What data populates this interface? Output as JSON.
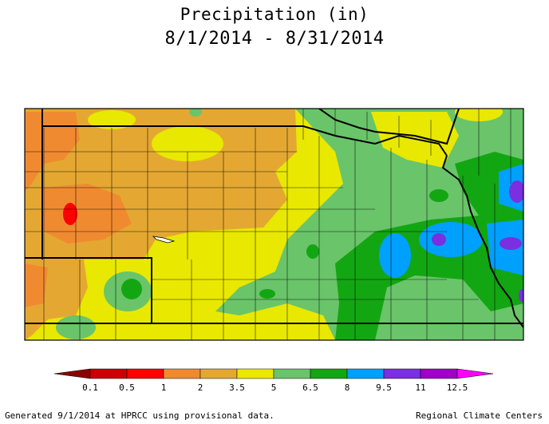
{
  "title": "Precipitation (in)",
  "date_range": "8/1/2014 - 8/31/2014",
  "legend": {
    "ticks": [
      "0.1",
      "0.5",
      "1",
      "2",
      "3.5",
      "5",
      "6.5",
      "8",
      "9.5",
      "11",
      "12.5"
    ],
    "colors": [
      "#8b0000",
      "#cc0000",
      "#ff0000",
      "#f08a30",
      "#e4a832",
      "#e9e800",
      "#6ac46a",
      "#13a613",
      "#00a0ff",
      "#7a2fe0",
      "#a000c8",
      "#ff00ff"
    ]
  },
  "footer_left": "Generated 9/1/2014 at HPRCC using provisional data.",
  "footer_right": "Regional Climate Centers"
}
